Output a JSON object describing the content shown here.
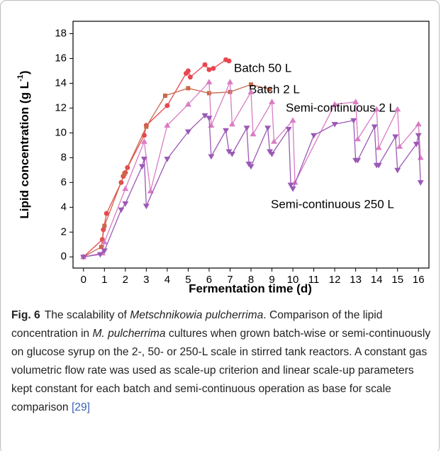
{
  "chart_data": {
    "type": "line",
    "x_label": "Fermentation time (d)",
    "y_label": {
      "main": "Lipid concentration (g L",
      "sup": "-1",
      "end": ")"
    },
    "xlim": [
      -0.5,
      16.5
    ],
    "ylim": [
      -0.9,
      19
    ],
    "xticks": [
      0,
      1,
      2,
      3,
      4,
      5,
      6,
      7,
      8,
      9,
      10,
      11,
      12,
      13,
      14,
      15,
      16
    ],
    "yticks": [
      0,
      2,
      4,
      6,
      8,
      10,
      12,
      14,
      16,
      18
    ],
    "series": [
      {
        "name": "Batch 50 L",
        "color": "#e8474f",
        "marker": "circle",
        "x": [
          0,
          0.9,
          0.95,
          1.1,
          1.8,
          1.9,
          2.0,
          2.1,
          2.9,
          3.0,
          4.0,
          4.9,
          5.0,
          5.1,
          5.8,
          6.0,
          6.2,
          6.8,
          6.95
        ],
        "values": [
          0,
          1.4,
          2.2,
          3.5,
          6.0,
          6.5,
          6.8,
          7.2,
          9.8,
          10.6,
          12.2,
          14.8,
          15.0,
          14.5,
          15.5,
          15.1,
          15.2,
          15.9,
          15.8
        ]
      },
      {
        "name": "Batch 2 L",
        "color": "#c8684a",
        "marker": "square",
        "x": [
          0,
          0.85,
          1.0,
          1.95,
          3.0,
          3.9,
          5.0,
          6.0,
          7.0,
          8.0,
          8.9
        ],
        "values": [
          0,
          0.8,
          2.5,
          6.7,
          10.5,
          13.0,
          13.6,
          13.2,
          13.3,
          13.9,
          13.5
        ]
      },
      {
        "name": "Semi-continuous 2 L",
        "color": "#d97cc4",
        "marker": "triangle-up",
        "x": [
          0,
          0.9,
          1.0,
          2.0,
          2.9,
          3.2,
          4.0,
          5.0,
          6.0,
          6.1,
          7.0,
          7.1,
          8.0,
          8.1,
          9.0,
          9.1,
          10.0,
          10.1,
          12.0,
          13.0,
          13.1,
          14.0,
          14.1,
          15.0,
          15.1,
          16.0,
          16.1
        ],
        "values": [
          0,
          0.3,
          1.2,
          5.5,
          9.3,
          5.3,
          10.6,
          12.3,
          14.1,
          10.6,
          14.1,
          10.7,
          13.3,
          9.9,
          12.5,
          9.3,
          11.0,
          6.0,
          12.3,
          12.5,
          9.5,
          11.9,
          8.8,
          11.9,
          8.9,
          10.7,
          8.0
        ]
      },
      {
        "name": "Semi-continuous 250 L",
        "color": "#9b59b6",
        "marker": "triangle-down",
        "x": [
          0,
          0.8,
          1.0,
          1.8,
          2.0,
          2.8,
          2.9,
          3.0,
          4.0,
          5.0,
          5.8,
          6.0,
          6.1,
          6.8,
          6.95,
          7.1,
          7.8,
          7.9,
          8.0,
          8.8,
          8.9,
          9.0,
          9.8,
          9.9,
          10.0,
          11.0,
          12.0,
          12.9,
          13.0,
          13.1,
          13.9,
          14.0,
          14.1,
          14.9,
          15.0,
          15.9,
          16.0,
          16.1
        ],
        "values": [
          0,
          0.2,
          0.5,
          3.8,
          4.3,
          7.3,
          7.9,
          4.1,
          7.9,
          10.1,
          11.4,
          11.2,
          8.1,
          10.2,
          8.5,
          8.3,
          10.4,
          7.5,
          7.3,
          10.4,
          8.5,
          8.3,
          10.3,
          5.8,
          5.5,
          9.8,
          10.7,
          11.0,
          7.8,
          7.8,
          10.5,
          7.4,
          7.4,
          9.7,
          7.0,
          9.1,
          9.8,
          6.0
        ]
      }
    ]
  },
  "caption": {
    "label": "Fig. 6",
    "parts": [
      "The scalability of ",
      "Metschnikowia pulcherrima",
      ". Comparison of the lipid concentration in ",
      "M. pulcherrima",
      " cultures when grown batch-wise or semi-continuously on glucose syrup on the 2-, 50- or 250-L scale in stirred tank reactors. A constant gas volumetric flow rate was used as scale-up criterion and linear scale-up parameters kept constant for each batch and semi-continuous operation as base for scale comparison ",
      "[29]"
    ]
  }
}
